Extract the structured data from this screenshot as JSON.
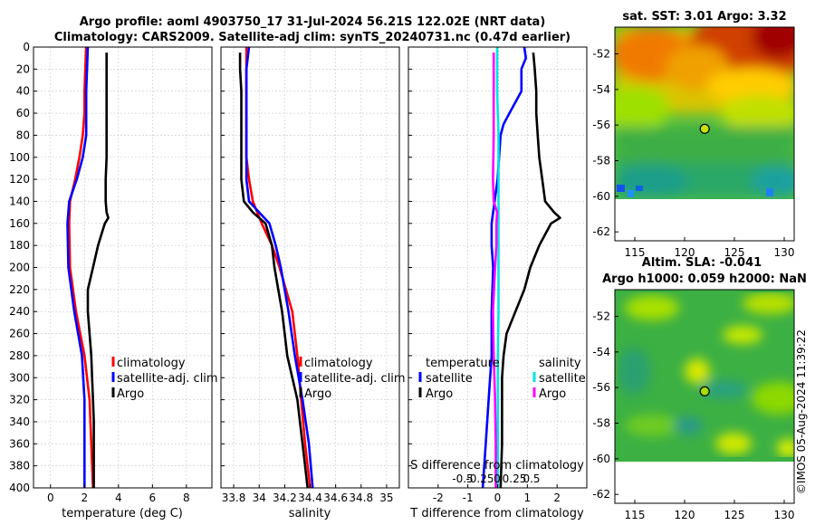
{
  "header": {
    "title_line1": "Argo profile: aoml 4903750_17 31-Jul-2024 56.21S 122.02E (NRT data)",
    "title_line2": "Climatology: CARS2009. Satellite-adj clim: synTS_20240731.nc (0.47d earlier)"
  },
  "footer": {
    "stamp": "©IMOS 05-Aug-2024 11:39:22"
  },
  "colors": {
    "climatology": "#ff0000",
    "satellite": "#0000ff",
    "argo": "#000000",
    "sal_satellite": "#00e5e5",
    "sal_argo": "#ff00ff"
  },
  "chart_data": [
    {
      "type": "line",
      "name": "temperature-profile",
      "xlabel": "temperature (deg C)",
      "ylabel": "",
      "xlim": [
        -1,
        9.5
      ],
      "ylim": [
        400,
        0
      ],
      "xticks": [
        0,
        2,
        4,
        6,
        8
      ],
      "xtick_labels": [
        "0",
        "2",
        "4",
        "6",
        "8"
      ],
      "yticks": [
        0,
        20,
        40,
        60,
        80,
        100,
        120,
        140,
        160,
        180,
        200,
        220,
        240,
        260,
        280,
        300,
        320,
        340,
        360,
        380,
        400
      ],
      "grid": true,
      "legend": [
        "climatology",
        "satellite-adj. clim",
        "Argo"
      ],
      "series": [
        {
          "name": "climatology",
          "color": "#ff0000",
          "depth": [
            0,
            20,
            40,
            60,
            80,
            100,
            120,
            140,
            160,
            200,
            240,
            280,
            320,
            360,
            400
          ],
          "values": [
            2.1,
            2.05,
            2.0,
            2.0,
            1.9,
            1.7,
            1.45,
            1.15,
            1.1,
            1.15,
            1.5,
            2.0,
            2.3,
            2.4,
            2.5
          ]
        },
        {
          "name": "satellite-adj. clim",
          "color": "#0000ff",
          "depth": [
            0,
            20,
            40,
            60,
            80,
            100,
            120,
            140,
            160,
            200,
            240,
            280,
            320,
            360,
            400
          ],
          "values": [
            2.2,
            2.15,
            2.1,
            2.1,
            2.1,
            1.9,
            1.55,
            1.1,
            1.0,
            1.05,
            1.4,
            1.85,
            2.0,
            2.0,
            2.0
          ]
        },
        {
          "name": "Argo",
          "color": "#000000",
          "depth": [
            5,
            20,
            40,
            60,
            80,
            100,
            120,
            140,
            150,
            155,
            160,
            170,
            180,
            200,
            220,
            240,
            260,
            280,
            300,
            320,
            340,
            360,
            380,
            400
          ],
          "values": [
            3.3,
            3.3,
            3.3,
            3.3,
            3.3,
            3.3,
            3.25,
            3.25,
            3.3,
            3.4,
            3.2,
            3.0,
            2.8,
            2.5,
            2.2,
            2.2,
            2.3,
            2.4,
            2.45,
            2.5,
            2.55,
            2.55,
            2.55,
            2.55
          ]
        }
      ]
    },
    {
      "type": "line",
      "name": "salinity-profile",
      "xlabel": "salinity",
      "ylabel": "",
      "xlim": [
        33.7,
        35.1
      ],
      "ylim": [
        400,
        0
      ],
      "xticks": [
        33.8,
        34,
        34.2,
        34.4,
        34.6,
        34.8,
        35
      ],
      "xtick_labels": [
        "33.8",
        "34",
        "34.2",
        "34.4",
        "34.6",
        "34.8",
        "35"
      ],
      "grid": true,
      "legend": [
        "climatology",
        "satellite-adj. clim",
        "Argo"
      ],
      "series": [
        {
          "name": "climatology",
          "color": "#ff0000",
          "depth": [
            0,
            20,
            40,
            60,
            80,
            100,
            120,
            140,
            160,
            180,
            200,
            240,
            280,
            320,
            360,
            400
          ],
          "values": [
            33.9,
            33.9,
            33.9,
            33.9,
            33.9,
            33.9,
            33.92,
            33.95,
            34.02,
            34.1,
            34.16,
            34.26,
            34.3,
            34.33,
            34.36,
            34.4
          ]
        },
        {
          "name": "satellite-adj. clim",
          "color": "#0000ff",
          "depth": [
            0,
            20,
            40,
            60,
            80,
            100,
            120,
            140,
            150,
            160,
            180,
            200,
            240,
            280,
            320,
            360,
            400
          ],
          "values": [
            33.92,
            33.9,
            33.9,
            33.9,
            33.9,
            33.9,
            33.9,
            33.92,
            34.0,
            34.08,
            34.13,
            34.17,
            34.23,
            34.28,
            34.34,
            34.39,
            34.42
          ]
        },
        {
          "name": "Argo",
          "color": "#000000",
          "depth": [
            5,
            20,
            40,
            60,
            80,
            100,
            120,
            140,
            150,
            160,
            180,
            200,
            220,
            240,
            260,
            280,
            300,
            320,
            340,
            360,
            380,
            400
          ],
          "values": [
            33.85,
            33.85,
            33.86,
            33.86,
            33.86,
            33.86,
            33.86,
            33.88,
            33.95,
            34.05,
            34.1,
            34.12,
            34.15,
            34.18,
            34.2,
            34.22,
            34.26,
            34.3,
            34.32,
            34.34,
            34.36,
            34.38
          ]
        }
      ]
    },
    {
      "type": "line",
      "name": "difference-profile",
      "xlabel": "T difference from climatology",
      "top_xlabel": "S difference from climatology",
      "xlim": [
        -3,
        3
      ],
      "ylim": [
        400,
        0
      ],
      "xticks": [
        -2,
        -1,
        0,
        1,
        2
      ],
      "xtick_labels": [
        "-2",
        "-1",
        "0",
        "1",
        "2"
      ],
      "top_ticks": [
        -0.5,
        -0.25,
        0,
        0.25,
        0.5
      ],
      "top_tick_labels": [
        "-0.5",
        "-0.25",
        "0",
        "0.25",
        "0.5"
      ],
      "grid": true,
      "legend_temperature": {
        "title": "temperature",
        "items": [
          "satellite",
          "Argo"
        ]
      },
      "legend_salinity": {
        "title": "salinity",
        "items": [
          "satellite",
          "Argo"
        ]
      },
      "series": [
        {
          "name": "temperature satellite",
          "color": "#0000ff",
          "depth": [
            0,
            10,
            20,
            40,
            60,
            70,
            80,
            100,
            120,
            140,
            160,
            180,
            200,
            240,
            280,
            320,
            360,
            400
          ],
          "values": [
            0.9,
            0.95,
            0.8,
            0.8,
            0.4,
            0.2,
            0.1,
            0.05,
            0.0,
            -0.1,
            -0.2,
            -0.2,
            -0.15,
            -0.2,
            -0.2,
            -0.3,
            -0.4,
            -0.5
          ]
        },
        {
          "name": "temperature Argo",
          "color": "#000000",
          "depth": [
            5,
            20,
            40,
            60,
            80,
            100,
            120,
            140,
            150,
            155,
            160,
            170,
            180,
            200,
            220,
            240,
            260,
            280,
            300,
            320,
            360,
            400
          ],
          "values": [
            1.2,
            1.25,
            1.3,
            1.3,
            1.35,
            1.4,
            1.5,
            1.6,
            1.9,
            2.1,
            1.8,
            1.6,
            1.4,
            1.1,
            0.9,
            0.6,
            0.3,
            0.2,
            0.15,
            0.15,
            0.15,
            0.1
          ]
        },
        {
          "name": "salinity satellite",
          "color": "#00e5e5",
          "depth": [
            0,
            40,
            80,
            120,
            160,
            200,
            240,
            280,
            320,
            360,
            400
          ],
          "values": [
            0.0,
            0.0,
            0.02,
            0.02,
            0.02,
            0.02,
            0.02,
            0.01,
            0.01,
            0.01,
            0.01
          ]
        },
        {
          "name": "salinity Argo",
          "color": "#ff00ff",
          "depth": [
            5,
            40,
            80,
            120,
            140,
            150,
            160,
            180,
            200,
            240,
            280,
            320,
            360,
            400
          ],
          "values": [
            -0.05,
            -0.05,
            -0.05,
            -0.06,
            -0.05,
            0.0,
            -0.01,
            -0.01,
            -0.03,
            -0.06,
            -0.05,
            -0.03,
            -0.02,
            -0.02
          ]
        }
      ]
    },
    {
      "type": "heatmap",
      "name": "sst-map",
      "title": "sat. SST: 3.01 Argo: 3.32",
      "xlim": [
        113,
        131
      ],
      "ylim": [
        -62.5,
        -50.5
      ],
      "xticks": [
        115,
        120,
        125,
        130
      ],
      "yticks": [
        -52,
        -54,
        -56,
        -58,
        -60,
        -62
      ],
      "argo_position": {
        "lon": 122.02,
        "lat": -56.21
      }
    },
    {
      "type": "heatmap",
      "name": "sla-map",
      "title_line1": "Altim. SLA: -0.041",
      "title_line2": "Argo h1000: 0.059 h2000: NaN",
      "xlim": [
        113,
        131
      ],
      "ylim": [
        -62.5,
        -50.5
      ],
      "xticks": [
        115,
        120,
        125,
        130
      ],
      "yticks": [
        -52,
        -54,
        -56,
        -58,
        -60,
        -62
      ],
      "argo_position": {
        "lon": 122.02,
        "lat": -56.21
      }
    }
  ]
}
